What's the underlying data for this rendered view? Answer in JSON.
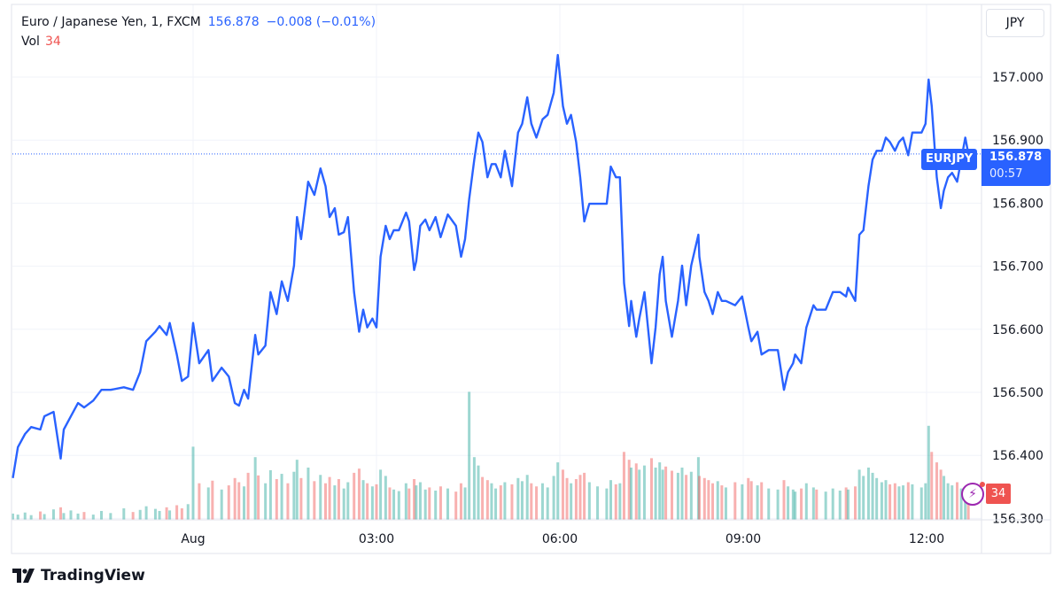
{
  "header": {
    "symbol_title": "Euro / Japanese Yen, 1, FXCM",
    "last_price": "156.878",
    "change": "−0.008 (−0.01%)",
    "volume_label": "Vol",
    "volume_value": "34"
  },
  "currency_button": "JPY",
  "price_tag": {
    "symbol": "EURJPY",
    "price": "156.878",
    "countdown": "00:57"
  },
  "volume_tag": "34",
  "icons": {
    "alert": "lightning-icon",
    "logo": "tradingview-logo"
  },
  "branding": "TradingView",
  "colors": {
    "line": "#2962ff",
    "vol_up": "#26a69a",
    "vol_down": "#ef5350",
    "grid": "#f0f3fa"
  },
  "chart_data": {
    "type": "line",
    "title": "Euro / Japanese Yen, 1, FXCM",
    "y_ticks": [
      "157.000",
      "156.900",
      "156.800",
      "156.700",
      "156.600",
      "156.500",
      "156.400",
      "156.300"
    ],
    "x_ticks": [
      "Aug",
      "03:00",
      "06:00",
      "09:00",
      "12:00"
    ],
    "ylim": [
      156.3,
      157.0
    ],
    "grid": true,
    "last_value_line": 156.878,
    "series": [
      {
        "points_time_price_volume": [
          [
            "21:03",
            156.364,
            12
          ],
          [
            "21:08",
            156.413,
            10
          ],
          [
            "21:15",
            156.434,
            14
          ],
          [
            "21:21",
            156.445,
            9
          ],
          [
            "21:30",
            156.441,
            16
          ],
          [
            "21:34",
            156.462,
            11
          ],
          [
            "21:43",
            156.469,
            20
          ],
          [
            "21:50",
            156.395,
            24
          ],
          [
            "21:53",
            156.441,
            13
          ],
          [
            "22:00",
            156.462,
            18
          ],
          [
            "22:07",
            156.483,
            12
          ],
          [
            "22:13",
            156.476,
            15
          ],
          [
            "22:22",
            156.487,
            10
          ],
          [
            "22:30",
            156.504,
            17
          ],
          [
            "22:39",
            156.504,
            13
          ],
          [
            "22:52",
            156.508,
            22
          ],
          [
            "23:01",
            156.504,
            15
          ],
          [
            "23:08",
            156.532,
            19
          ],
          [
            "23:14",
            156.581,
            26
          ],
          [
            "23:23",
            156.596,
            21
          ],
          [
            "23:27",
            156.605,
            17
          ],
          [
            "23:34",
            156.591,
            24
          ],
          [
            "23:37",
            156.61,
            18
          ],
          [
            "23:44",
            156.56,
            28
          ],
          [
            "23:49",
            156.518,
            22
          ],
          [
            "23:55",
            156.525,
            30
          ],
          [
            "00:00",
            156.61,
            140
          ],
          [
            "00:06",
            156.546,
            70
          ],
          [
            "00:15",
            156.567,
            62
          ],
          [
            "00:19",
            156.518,
            75
          ],
          [
            "00:28",
            156.539,
            58
          ],
          [
            "00:35",
            156.525,
            66
          ],
          [
            "00:41",
            156.483,
            80
          ],
          [
            "00:45",
            156.479,
            72
          ],
          [
            "00:50",
            156.504,
            64
          ],
          [
            "00:54",
            156.49,
            90
          ],
          [
            "01:01",
            156.591,
            120
          ],
          [
            "01:04",
            156.56,
            85
          ],
          [
            "01:11",
            156.574,
            70
          ],
          [
            "01:16",
            156.659,
            95
          ],
          [
            "01:22",
            156.624,
            78
          ],
          [
            "01:27",
            156.676,
            88
          ],
          [
            "01:33",
            156.645,
            70
          ],
          [
            "01:39",
            156.701,
            92
          ],
          [
            "01:42",
            156.778,
            115
          ],
          [
            "01:46",
            156.743,
            80
          ],
          [
            "01:53",
            156.834,
            100
          ],
          [
            "01:59",
            156.813,
            74
          ],
          [
            "02:05",
            156.855,
            86
          ],
          [
            "02:10",
            156.827,
            70
          ],
          [
            "02:14",
            156.778,
            82
          ],
          [
            "02:19",
            156.792,
            66
          ],
          [
            "02:23",
            156.75,
            78
          ],
          [
            "02:28",
            156.754,
            60
          ],
          [
            "02:32",
            156.778,
            72
          ],
          [
            "02:38",
            156.659,
            90
          ],
          [
            "02:43",
            156.596,
            98
          ],
          [
            "02:47",
            156.631,
            76
          ],
          [
            "02:51",
            156.603,
            70
          ],
          [
            "02:56",
            156.617,
            64
          ],
          [
            "03:00",
            156.603,
            68
          ],
          [
            "03:04",
            156.715,
            96
          ],
          [
            "03:09",
            156.764,
            84
          ],
          [
            "03:13",
            156.743,
            62
          ],
          [
            "03:17",
            156.757,
            58
          ],
          [
            "03:22",
            156.757,
            55
          ],
          [
            "03:29",
            156.785,
            70
          ],
          [
            "03:32",
            156.771,
            60
          ],
          [
            "03:37",
            156.694,
            78
          ],
          [
            "03:39",
            156.708,
            66
          ],
          [
            "03:43",
            156.764,
            72
          ],
          [
            "03:48",
            156.774,
            58
          ],
          [
            "03:52",
            156.757,
            62
          ],
          [
            "03:58",
            156.778,
            56
          ],
          [
            "04:03",
            156.746,
            64
          ],
          [
            "04:10",
            156.782,
            60
          ],
          [
            "04:18",
            156.764,
            54
          ],
          [
            "04:23",
            156.715,
            70
          ],
          [
            "04:27",
            156.743,
            62
          ],
          [
            "04:31",
            156.806,
            245
          ],
          [
            "04:36",
            156.869,
            120
          ],
          [
            "04:40",
            156.912,
            104
          ],
          [
            "04:44",
            156.897,
            82
          ],
          [
            "04:49",
            156.841,
            76
          ],
          [
            "04:53",
            156.862,
            70
          ],
          [
            "04:57",
            156.862,
            60
          ],
          [
            "05:02",
            156.841,
            66
          ],
          [
            "05:06",
            156.883,
            72
          ],
          [
            "05:13",
            156.827,
            68
          ],
          [
            "05:19",
            156.912,
            80
          ],
          [
            "05:23",
            156.926,
            74
          ],
          [
            "05:28",
            156.968,
            86
          ],
          [
            "05:32",
            156.926,
            70
          ],
          [
            "05:37",
            156.904,
            64
          ],
          [
            "05:43",
            156.933,
            70
          ],
          [
            "05:48",
            156.94,
            62
          ],
          [
            "05:54",
            156.975,
            84
          ],
          [
            "05:58",
            157.035,
            110
          ],
          [
            "06:03",
            156.954,
            96
          ],
          [
            "06:07",
            156.926,
            80
          ],
          [
            "06:11",
            156.94,
            70
          ],
          [
            "06:16",
            156.897,
            78
          ],
          [
            "06:20",
            156.841,
            86
          ],
          [
            "06:24",
            156.771,
            90
          ],
          [
            "06:29",
            156.799,
            72
          ],
          [
            "06:37",
            156.799,
            64
          ],
          [
            "06:46",
            156.799,
            60
          ],
          [
            "06:50",
            156.858,
            76
          ],
          [
            "06:55",
            156.841,
            68
          ],
          [
            "06:59",
            156.841,
            70
          ],
          [
            "07:03",
            156.673,
            130
          ],
          [
            "07:08",
            156.605,
            115
          ],
          [
            "07:10",
            156.645,
            100
          ],
          [
            "07:15",
            156.588,
            108
          ],
          [
            "07:18",
            156.617,
            96
          ],
          [
            "07:23",
            156.659,
            104
          ],
          [
            "07:30",
            156.546,
            118
          ],
          [
            "07:34",
            156.603,
            100
          ],
          [
            "07:38",
            156.687,
            110
          ],
          [
            "07:41",
            156.715,
            96
          ],
          [
            "07:44",
            156.645,
            102
          ],
          [
            "07:50",
            156.588,
            94
          ],
          [
            "07:56",
            156.645,
            90
          ],
          [
            "08:00",
            156.701,
            100
          ],
          [
            "08:04",
            156.638,
            86
          ],
          [
            "08:09",
            156.701,
            92
          ],
          [
            "08:16",
            156.75,
            120
          ],
          [
            "08:17",
            156.715,
            84
          ],
          [
            "08:22",
            156.659,
            80
          ],
          [
            "08:26",
            156.645,
            76
          ],
          [
            "08:30",
            156.624,
            70
          ],
          [
            "08:35",
            156.659,
            74
          ],
          [
            "08:39",
            156.645,
            66
          ],
          [
            "08:43",
            156.645,
            62
          ],
          [
            "08:52",
            156.638,
            72
          ],
          [
            "08:59",
            156.652,
            68
          ],
          [
            "09:05",
            156.603,
            80
          ],
          [
            "09:08",
            156.581,
            74
          ],
          [
            "09:14",
            156.596,
            66
          ],
          [
            "09:18",
            156.56,
            72
          ],
          [
            "09:25",
            156.567,
            60
          ],
          [
            "09:34",
            156.567,
            58
          ],
          [
            "09:40",
            156.504,
            76
          ],
          [
            "09:44",
            156.532,
            64
          ],
          [
            "09:49",
            156.546,
            58
          ],
          [
            "09:51",
            156.56,
            54
          ],
          [
            "09:57",
            156.546,
            60
          ],
          [
            "10:02",
            156.603,
            70
          ],
          [
            "10:09",
            156.638,
            62
          ],
          [
            "10:12",
            156.631,
            58
          ],
          [
            "10:21",
            156.631,
            54
          ],
          [
            "10:28",
            156.659,
            60
          ],
          [
            "10:35",
            156.659,
            56
          ],
          [
            "10:41",
            156.652,
            62
          ],
          [
            "10:43",
            156.666,
            58
          ],
          [
            "10:50",
            156.645,
            64
          ],
          [
            "10:54",
            156.75,
            96
          ],
          [
            "10:58",
            156.757,
            84
          ],
          [
            "11:03",
            156.827,
            100
          ],
          [
            "11:07",
            156.869,
            90
          ],
          [
            "11:11",
            156.883,
            80
          ],
          [
            "11:16",
            156.883,
            72
          ],
          [
            "11:20",
            156.904,
            76
          ],
          [
            "11:24",
            156.897,
            68
          ],
          [
            "11:29",
            156.883,
            70
          ],
          [
            "11:33",
            156.897,
            64
          ],
          [
            "11:37",
            156.904,
            66
          ],
          [
            "11:42",
            156.876,
            72
          ],
          [
            "11:46",
            156.912,
            68
          ],
          [
            "11:55",
            156.912,
            62
          ],
          [
            "11:59",
            156.926,
            70
          ],
          [
            "12:02",
            156.996,
            180
          ],
          [
            "12:05",
            156.954,
            130
          ],
          [
            "12:10",
            156.841,
            110
          ],
          [
            "12:14",
            156.792,
            96
          ],
          [
            "12:17",
            156.82,
            84
          ],
          [
            "12:21",
            156.841,
            70
          ],
          [
            "12:25",
            156.848,
            66
          ],
          [
            "12:30",
            156.834,
            72
          ],
          [
            "12:34",
            156.869,
            60
          ],
          [
            "12:38",
            156.904,
            58
          ],
          [
            "12:41",
            156.878,
            34
          ]
        ]
      }
    ]
  }
}
